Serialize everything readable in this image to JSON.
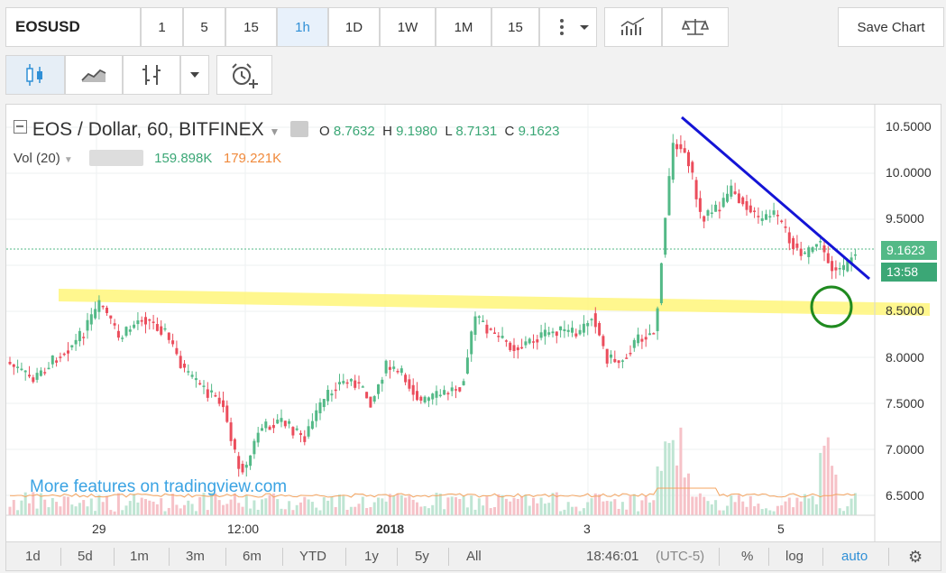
{
  "toolbar": {
    "symbol": "EOSUSD",
    "intervals": [
      "1",
      "5",
      "15",
      "1h",
      "1D",
      "1W",
      "1M",
      "15"
    ],
    "active_interval": "1h",
    "save_label": "Save Chart"
  },
  "legend": {
    "title": "EOS / Dollar, 60, BITFINEX",
    "o_label": "O",
    "o_value": "8.7632",
    "h_label": "H",
    "h_value": "9.1980",
    "l_label": "L",
    "l_value": "8.7131",
    "c_label": "C",
    "c_value": "9.1623",
    "vol_label": "Vol (20)",
    "vol_value": "159.898K",
    "vol_ma_value": "179.221K"
  },
  "chart": {
    "y_ticks": [
      "10.5000",
      "10.0000",
      "9.5000",
      "9.0000",
      "8.5000",
      "8.0000",
      "7.5000",
      "7.0000",
      "6.5000"
    ],
    "x_ticks": [
      "29",
      "12:00",
      "2018",
      "3",
      "5"
    ],
    "current_price": "9.1623",
    "countdown": "13:58",
    "watermark": "More features on tradingview.com",
    "colors": {
      "up": "#53b987",
      "down": "#eb4d5c",
      "trendline": "#1414d6",
      "support_zone": "#fff67a",
      "circle": "#1f8a1f"
    }
  },
  "bottom_bar": {
    "ranges": [
      "1d",
      "5d",
      "1m",
      "3m",
      "6m",
      "YTD",
      "1y",
      "5y",
      "All"
    ],
    "time": "18:46:01",
    "timezone": "(UTC-5)",
    "percent": "%",
    "log": "log",
    "auto": "auto"
  }
}
